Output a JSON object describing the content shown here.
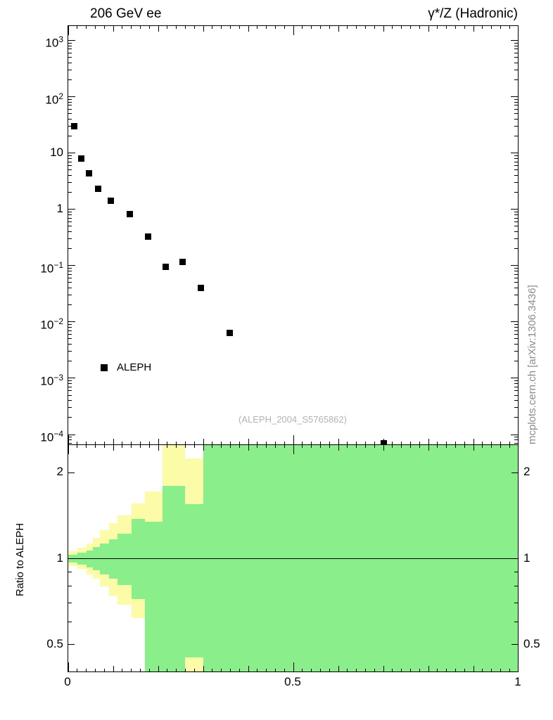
{
  "header": {
    "left_title": "206 GeV ee",
    "right_title": "γ*/Z (Hadronic)"
  },
  "watermark": "(ALEPH_2004_S5765862)",
  "side_note": "mcplots.cern.ch [arXiv:1306.3436]",
  "legend": {
    "label": "ALEPH"
  },
  "ratio": {
    "ylabel": "Ratio to ALEPH"
  },
  "colors": {
    "marker": "#000000",
    "band_outer_yellow": "#fbfba8",
    "band_inner_green": "#8aef8a",
    "watermark_gray": "#b3b3b3",
    "side_note_gray": "#8c8c8c"
  },
  "chart_data": [
    {
      "type": "scatter",
      "panel": "main",
      "legend_position": "inside-left",
      "series": [
        {
          "name": "ALEPH",
          "marker": "filled-square",
          "color": "#000000",
          "x": [
            0.013,
            0.029,
            0.046,
            0.067,
            0.095,
            0.137,
            0.178,
            0.216,
            0.254,
            0.295,
            0.359,
            0.7
          ],
          "y": [
            30,
            8,
            4.3,
            2.3,
            1.4,
            0.82,
            0.33,
            0.095,
            0.115,
            0.04,
            0.0063,
            7e-05
          ]
        }
      ],
      "xlim": [
        0,
        1
      ],
      "ylog": true,
      "ylim": [
        6.5e-05,
        1800
      ],
      "ytick_exponents": [
        3,
        2,
        1,
        0,
        -1,
        -2,
        -3,
        -4
      ],
      "xticks": [
        0,
        0.5,
        1
      ],
      "grid": false
    },
    {
      "type": "area",
      "panel": "ratio",
      "ylabel": "Ratio to ALEPH",
      "ylog": true,
      "ylim": [
        0.4,
        2.5
      ],
      "yticks": [
        2,
        1,
        0.5
      ],
      "yticks_minor": [
        0.4,
        0.6,
        0.7,
        0.8,
        0.9
      ],
      "xticks": [
        0,
        0.5,
        1
      ],
      "reference_line": 1,
      "band_colors": {
        "outer": "#fbfba8",
        "inner": "#8aef8a"
      },
      "bins": [
        {
          "x": [
            0.0,
            0.02
          ],
          "green": [
            0.97,
            1.03
          ],
          "yellow": [
            0.94,
            1.06
          ]
        },
        {
          "x": [
            0.02,
            0.04
          ],
          "green": [
            0.955,
            1.05
          ],
          "yellow": [
            0.92,
            1.09
          ]
        },
        {
          "x": [
            0.04,
            0.055
          ],
          "green": [
            0.93,
            1.07
          ],
          "yellow": [
            0.88,
            1.13
          ]
        },
        {
          "x": [
            0.055,
            0.07
          ],
          "green": [
            0.91,
            1.1
          ],
          "yellow": [
            0.85,
            1.18
          ]
        },
        {
          "x": [
            0.07,
            0.09
          ],
          "green": [
            0.88,
            1.13
          ],
          "yellow": [
            0.8,
            1.26
          ]
        },
        {
          "x": [
            0.09,
            0.11
          ],
          "green": [
            0.85,
            1.17
          ],
          "yellow": [
            0.74,
            1.33
          ]
        },
        {
          "x": [
            0.11,
            0.14
          ],
          "green": [
            0.81,
            1.22
          ],
          "yellow": [
            0.69,
            1.42
          ]
        },
        {
          "x": [
            0.14,
            0.17
          ],
          "green": [
            0.72,
            1.38
          ],
          "yellow": [
            0.62,
            1.56
          ]
        },
        {
          "x": [
            0.17,
            0.21
          ],
          "green": [
            0.4,
            1.35
          ],
          "yellow": [
            0.4,
            1.72
          ]
        },
        {
          "x": [
            0.21,
            0.26
          ],
          "green": [
            0.4,
            1.8
          ],
          "yellow": [
            0.4,
            2.5
          ]
        },
        {
          "x": [
            0.26,
            0.3
          ],
          "green": [
            0.45,
            1.55
          ],
          "yellow": [
            0.4,
            2.25
          ]
        },
        {
          "x": [
            0.3,
            0.33
          ],
          "green": [
            0.4,
            2.5
          ],
          "yellow": [
            0.4,
            2.5
          ]
        },
        {
          "x": [
            0.33,
            1.0
          ],
          "green": [
            0.4,
            2.5
          ],
          "yellow": [
            0.4,
            2.5
          ]
        }
      ]
    }
  ]
}
